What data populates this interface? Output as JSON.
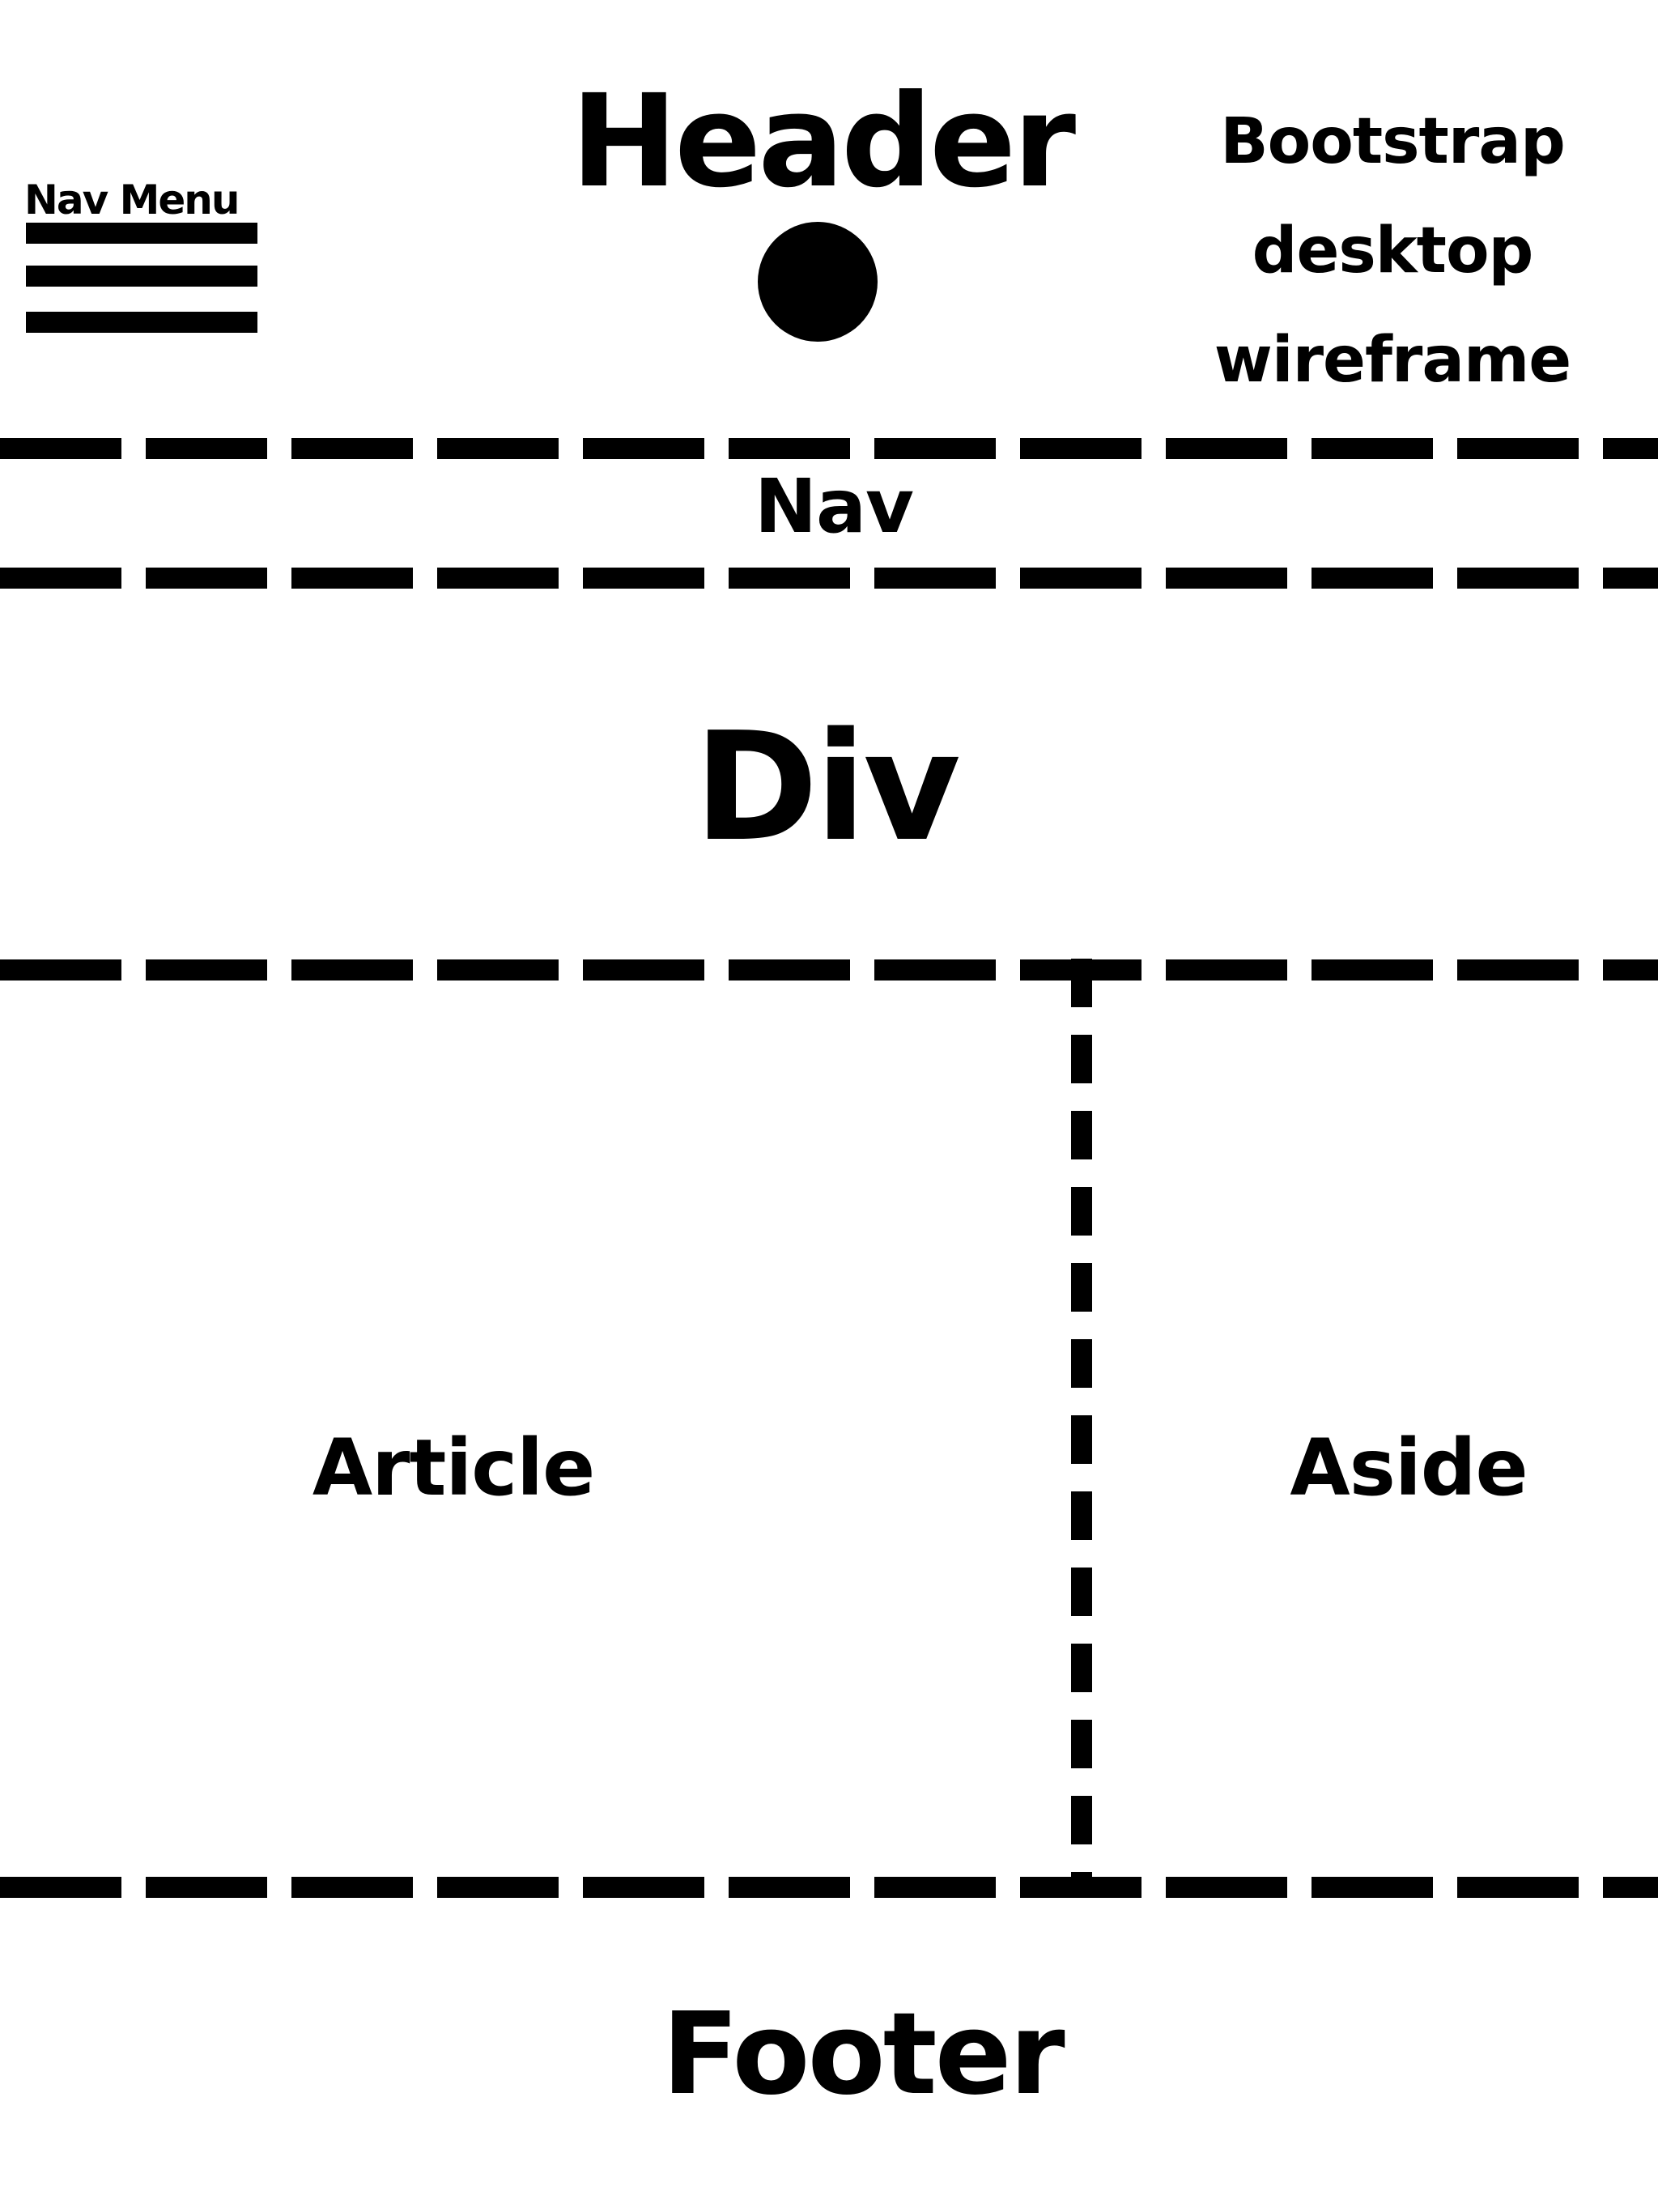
{
  "header": {
    "title": "Header"
  },
  "nav_menu": {
    "label": "Nav Menu",
    "icon": "hamburger-icon"
  },
  "note": {
    "text": "Bootstrap\ndesktop\nwireframe"
  },
  "nav": {
    "label": "Nav"
  },
  "div": {
    "label": "Div"
  },
  "article": {
    "label": "Article"
  },
  "aside": {
    "label": "Aside"
  },
  "footer": {
    "label": "Footer"
  },
  "style": {
    "ink": "#000000",
    "background": "#ffffff",
    "line_style": "dashed"
  }
}
